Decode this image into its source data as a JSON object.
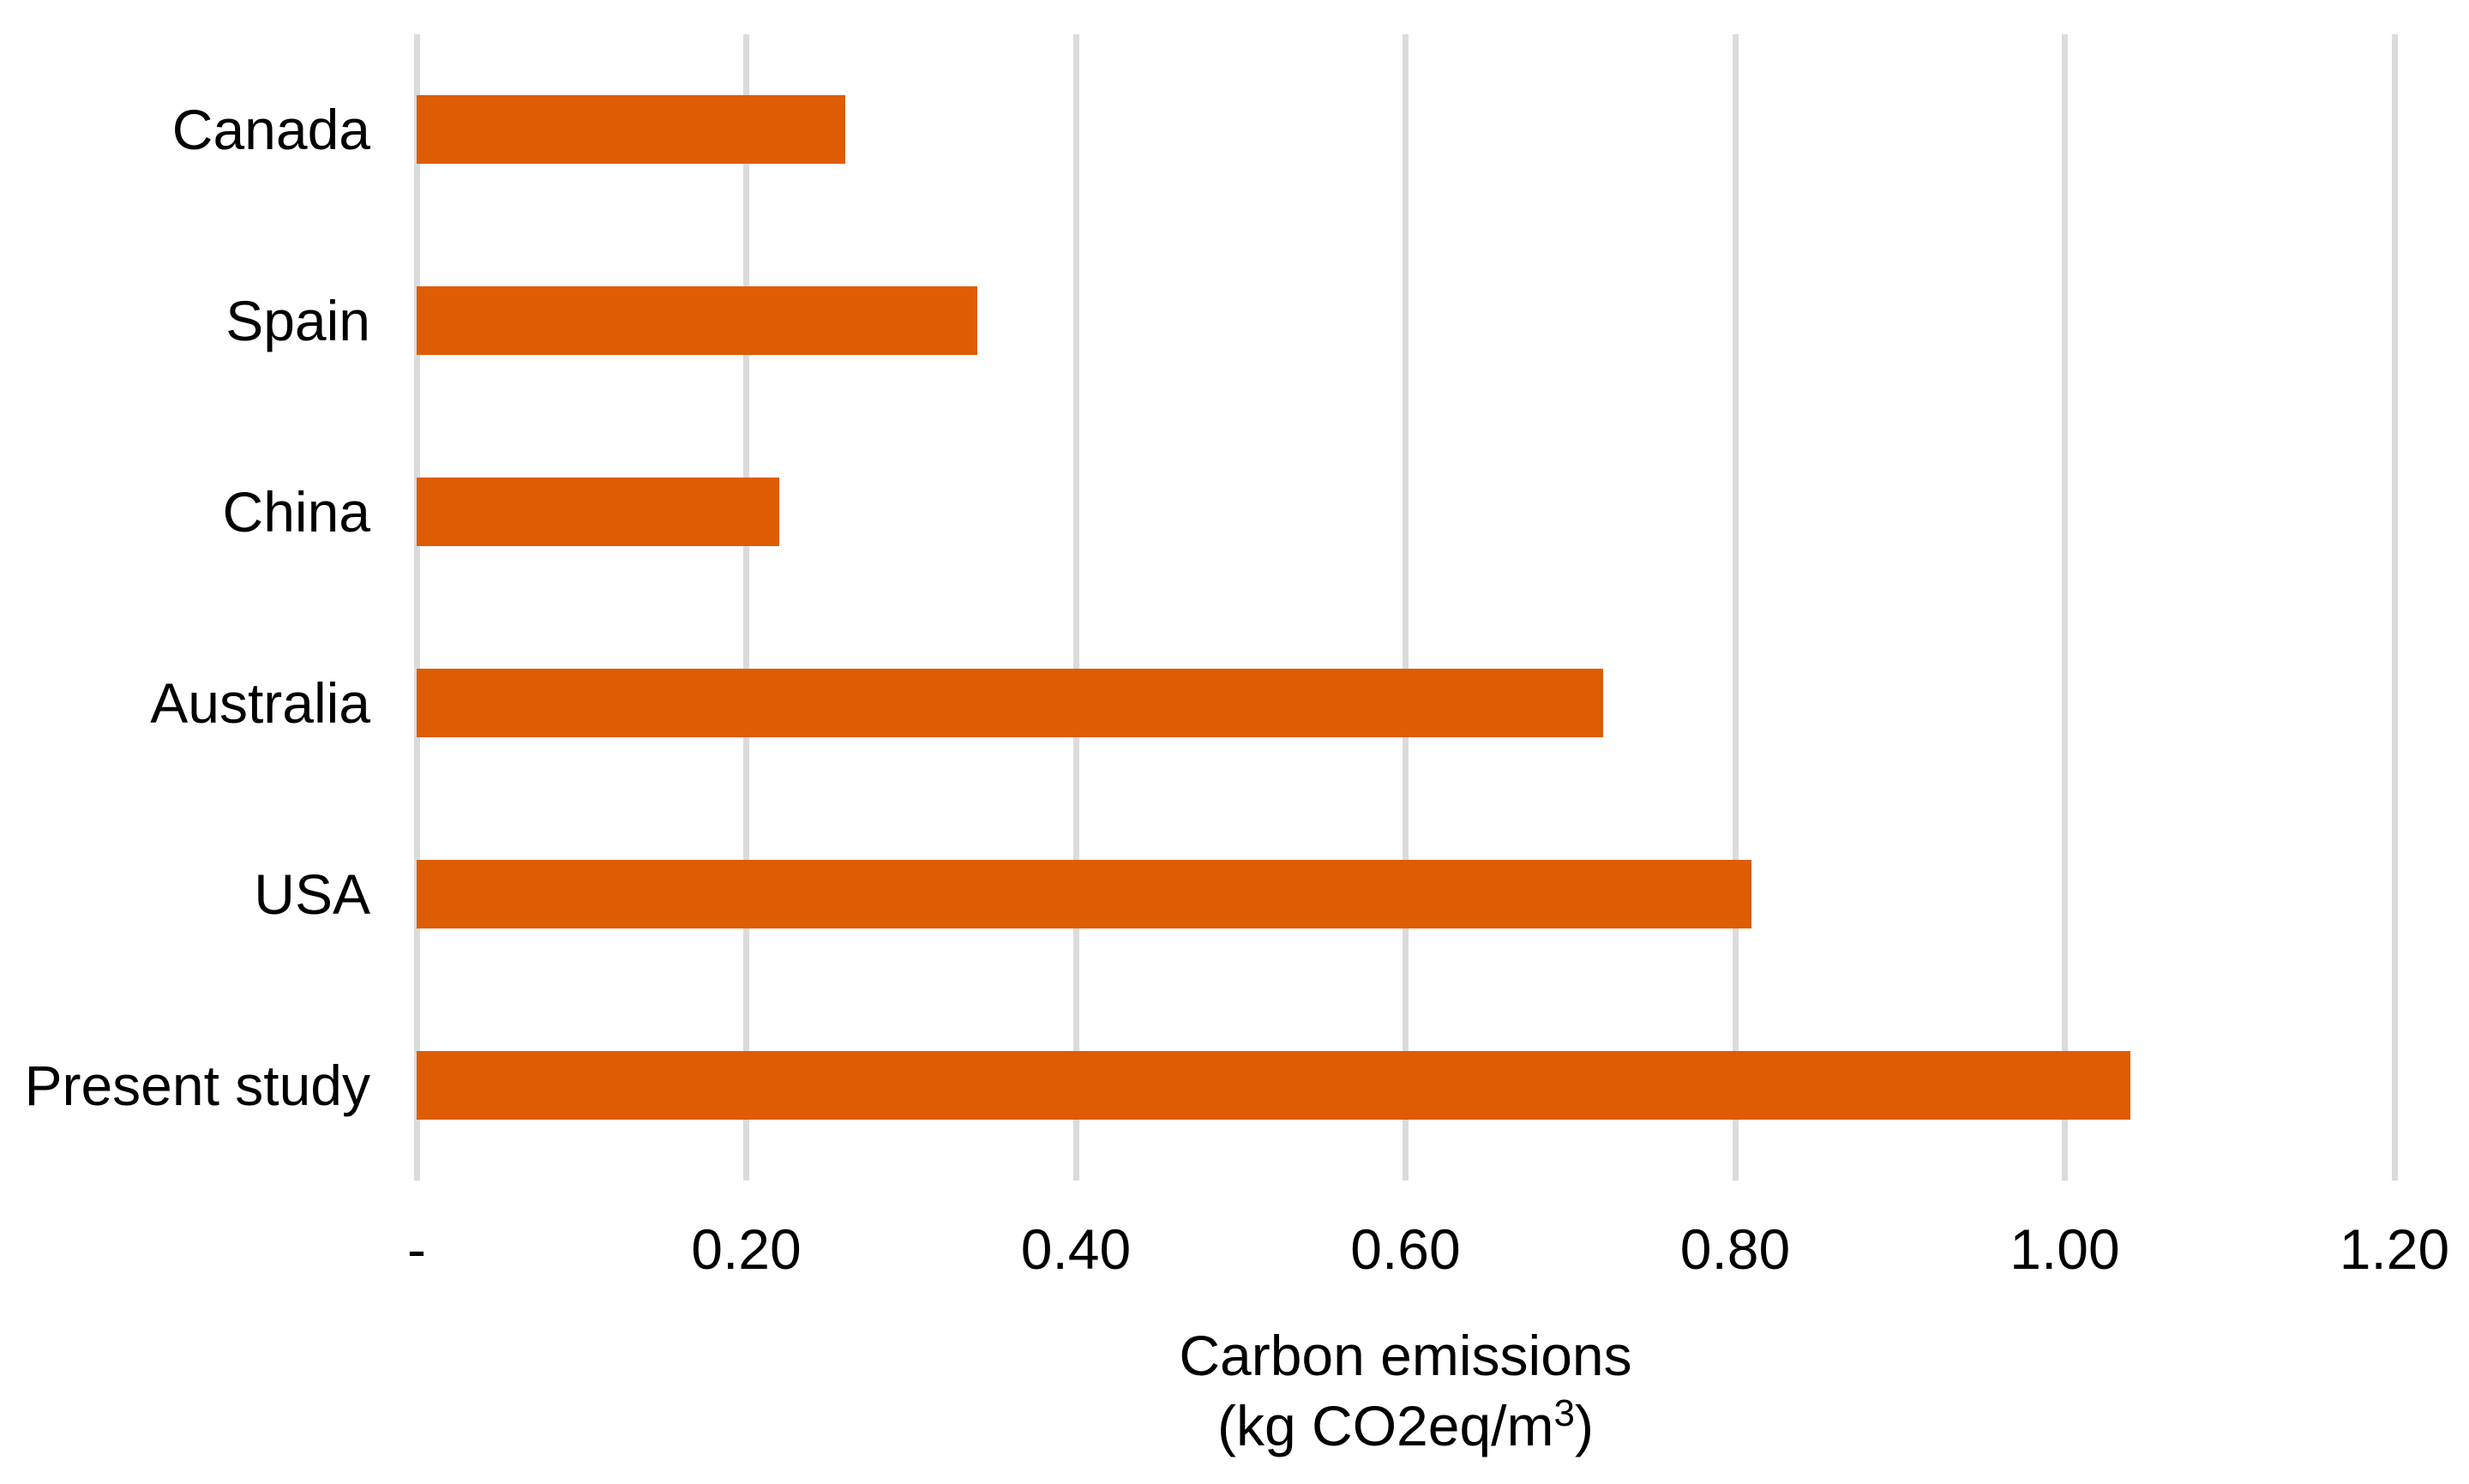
{
  "chart_data": {
    "type": "bar",
    "orientation": "horizontal",
    "title": "",
    "categories": [
      "Canada",
      "Spain",
      "China",
      "Australia",
      "USA",
      "Present study"
    ],
    "values": [
      0.26,
      0.34,
      0.22,
      0.72,
      0.81,
      1.04
    ],
    "xlabel": "Carbon emissions (kg CO2eq/m³)",
    "xlabel_line1": "Carbon emissions",
    "xlabel_line2_prefix": "(kg CO2eq/m",
    "xlabel_line2_sup": "3",
    "xlabel_line2_suffix": ")",
    "ylabel": "",
    "xlim": [
      0,
      1.2
    ],
    "xticks": [
      0,
      0.2,
      0.4,
      0.6,
      0.8,
      1.0,
      1.2
    ],
    "xtick_labels": [
      "-",
      "0.20",
      "0.40",
      "0.60",
      "0.80",
      "1.00",
      "1.20"
    ],
    "grid": true,
    "legend": false,
    "bar_color": "#DE5C04",
    "gridline_color": "#DBDBDB",
    "text_color": "#000000"
  }
}
